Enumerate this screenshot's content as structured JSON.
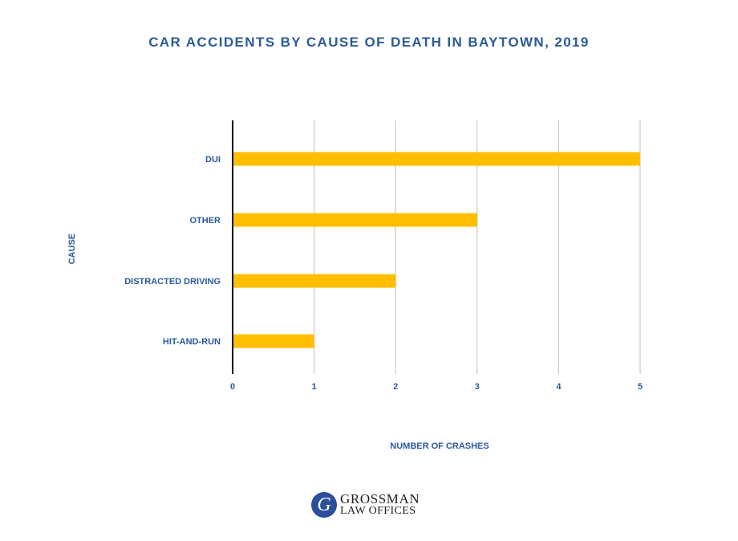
{
  "chart_data": {
    "type": "bar",
    "orientation": "horizontal",
    "title": "CAR ACCIDENTS BY CAUSE OF DEATH IN BAYTOWN, 2019",
    "xlabel": "NUMBER OF CRASHES",
    "ylabel": "CAUSE",
    "categories": [
      "DUI",
      "OTHER",
      "DISTRACTED DRIVING",
      "HIT-AND-RUN"
    ],
    "values": [
      5,
      3,
      2,
      1
    ],
    "xlim": [
      0,
      5
    ],
    "xticks": [
      "0",
      "1",
      "2",
      "3",
      "4",
      "5"
    ],
    "grid": "vertical",
    "colors": {
      "bar": "#FFBF00",
      "text": "#2B5A9C",
      "grid": "#C8C8C8",
      "axis": "#000000"
    }
  },
  "logo": {
    "mark": "G",
    "line1": "GROSSMAN",
    "line2": "LAW OFFICES"
  }
}
